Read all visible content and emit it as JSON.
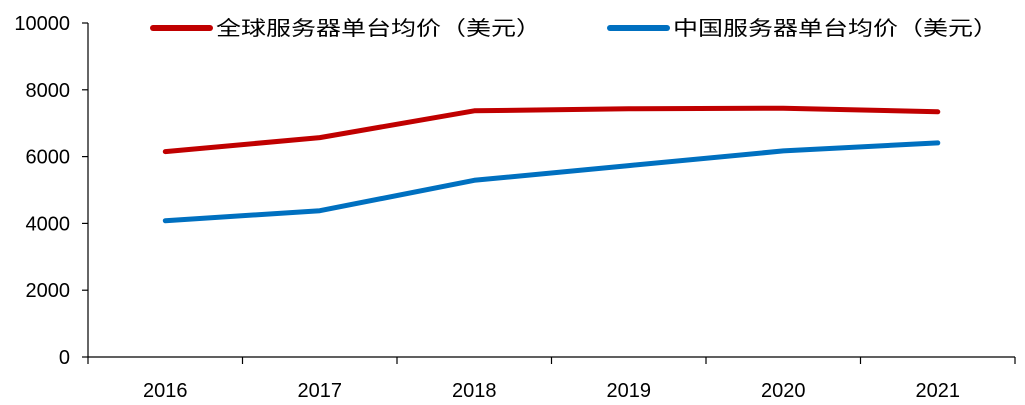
{
  "chart_data": {
    "type": "line",
    "x": [
      "2016",
      "2017",
      "2018",
      "2019",
      "2020",
      "2021"
    ],
    "series": [
      {
        "name": "全球服务器单台均价（美元）",
        "color": "#c00000",
        "values": [
          6150,
          6570,
          7370,
          7430,
          7450,
          7340
        ]
      },
      {
        "name": "中国服务器单台均价（美元）",
        "color": "#0070c0",
        "values": [
          4080,
          4380,
          5290,
          5730,
          6170,
          6410
        ]
      }
    ],
    "yticks": [
      "0",
      "2000",
      "4000",
      "6000",
      "8000",
      "10000"
    ],
    "ylim": [
      0,
      10000
    ],
    "grid": false,
    "legend_position": "top"
  }
}
